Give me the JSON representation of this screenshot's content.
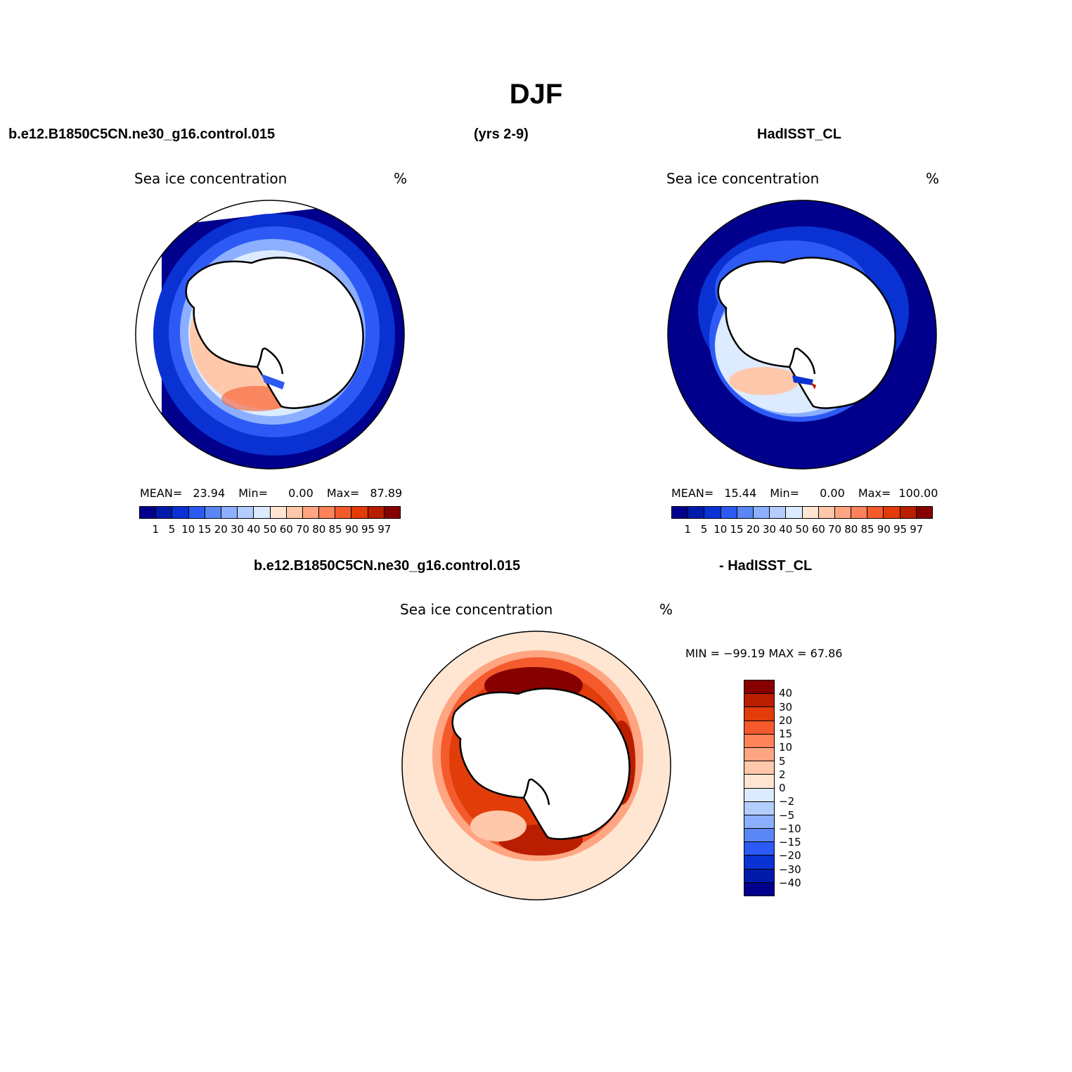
{
  "page_title": "DJF",
  "header": {
    "case_name": "b.e12.B1850C5CN.ne30_g16.control.015",
    "years": "(yrs 2-9)",
    "obs_name": "HadISST_CL",
    "diff_case": "b.e12.B1850C5CN.ne30_g16.control.015",
    "diff_obs": "- HadISST_CL"
  },
  "panels": [
    {
      "id": "model",
      "variable": "Sea ice concentration",
      "units": "%",
      "mean_label": "MEAN=",
      "mean": "23.94",
      "min_label": "Min=",
      "min": "0.00",
      "max_label": "Max=",
      "max": "87.89"
    },
    {
      "id": "obs",
      "variable": "Sea ice concentration",
      "units": "%",
      "mean_label": "MEAN=",
      "mean": "15.44",
      "min_label": "Min=",
      "min": "0.00",
      "max_label": "Max=",
      "max": "100.00"
    }
  ],
  "diff_panel": {
    "variable": "Sea ice concentration",
    "units": "%",
    "minmax": "MIN = −99.19 MAX = 67.86"
  },
  "colorbar_abs": {
    "levels": [
      "1",
      "5",
      "10",
      "15",
      "20",
      "30",
      "40",
      "50",
      "60",
      "70",
      "80",
      "85",
      "90",
      "95",
      "97"
    ],
    "colors": [
      "#00008c",
      "#001aaa",
      "#0a32d2",
      "#2d5af5",
      "#5a87f5",
      "#8cafff",
      "#b4cdff",
      "#dcebff",
      "#ffe6d2",
      "#ffc8aa",
      "#ffa582",
      "#ff825a",
      "#f55a2d",
      "#e13c0a",
      "#b91e00",
      "#870000"
    ]
  },
  "colorbar_diff": {
    "levels": [
      "40",
      "30",
      "20",
      "15",
      "10",
      "5",
      "2",
      "0",
      "−2",
      "−5",
      "−10",
      "−15",
      "−20",
      "−30",
      "−40"
    ],
    "colors": [
      "#870000",
      "#b91e00",
      "#e13c0a",
      "#f55a2d",
      "#ff825a",
      "#ffa582",
      "#ffc8aa",
      "#ffe6d2",
      "#dcebff",
      "#b4cdff",
      "#8cafff",
      "#5a87f5",
      "#2d5af5",
      "#0a32d2",
      "#001aaa",
      "#00008c"
    ]
  },
  "map_colors": {
    "ocean_blue": "#00008c",
    "ice_low": "#2d5af5",
    "ice_mid": "#8cafff",
    "ice_high": "#ffa582",
    "ice_peak": "#f55a2d",
    "diff_pos": "#e13c0a",
    "diff_peak": "#870000",
    "diff_neg": "#2d5af5",
    "diff_zero": "#ffe6d2"
  }
}
